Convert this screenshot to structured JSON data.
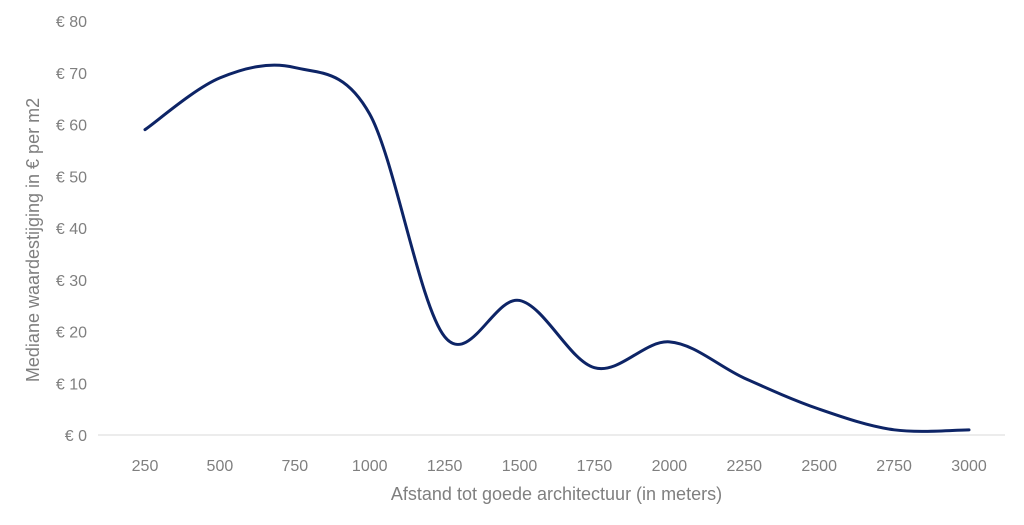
{
  "chart_data": {
    "type": "line",
    "title": "",
    "xlabel": "Afstand tot goede architectuur (in meters)",
    "ylabel": "Mediane waardestijging in € per m2",
    "x": [
      250,
      500,
      750,
      1000,
      1250,
      1500,
      1750,
      2000,
      2250,
      2500,
      2750,
      3000
    ],
    "x_tick_labels": [
      "250",
      "500",
      "750",
      "1000",
      "1250",
      "1500",
      "1750",
      "2000",
      "2250",
      "2500",
      "2750",
      "3000"
    ],
    "y_ticks": [
      0,
      10,
      20,
      30,
      40,
      50,
      60,
      70,
      80
    ],
    "y_tick_labels": [
      "€ 0",
      "€ 10",
      "€ 20",
      "€ 30",
      "€ 40",
      "€ 50",
      "€ 60",
      "€ 70",
      "€ 80"
    ],
    "ylim": [
      0,
      80
    ],
    "smooth": true,
    "grid": false,
    "legend": "none",
    "series": [
      {
        "values": [
          59,
          69,
          71,
          62,
          19,
          26,
          13,
          18,
          11,
          5,
          1,
          1
        ],
        "color": "#0d2466"
      }
    ]
  }
}
